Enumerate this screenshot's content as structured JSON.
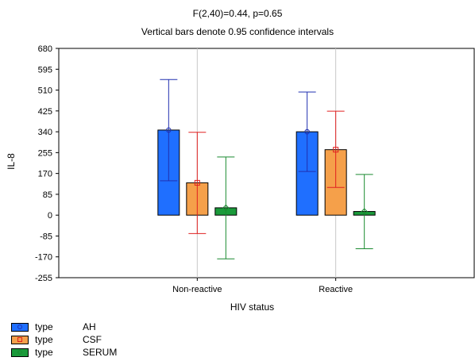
{
  "chart_data": {
    "type": "bar",
    "title": "F(2,40)=0.44, p=0.65",
    "subtitle": "Vertical bars denote 0.95 confidence intervals",
    "xlabel": "HIV status",
    "ylabel": "IL-8",
    "ylim": [
      -255,
      680
    ],
    "yticks": [
      680,
      595,
      510,
      425,
      340,
      255,
      170,
      85,
      0,
      -85,
      -170,
      -255
    ],
    "categories": [
      "Non-reactive",
      "Reactive"
    ],
    "grid": true,
    "legend_position": "bottom-left",
    "series": [
      {
        "name": "AH",
        "legend_prefix": "type",
        "color": "#1f6fff",
        "error_color": "#2030b0",
        "marker": "circle",
        "values": [
          347,
          340
        ],
        "ci_low": [
          140,
          178
        ],
        "ci_high": [
          553,
          502
        ]
      },
      {
        "name": "CSF",
        "legend_prefix": "type",
        "color": "#f5a04a",
        "error_color": "#e02020",
        "marker": "square",
        "values": [
          132,
          267
        ],
        "ci_low": [
          -75,
          113
        ],
        "ci_high": [
          338,
          424
        ]
      },
      {
        "name": "SERUM",
        "legend_prefix": "type",
        "color": "#1a9a3a",
        "error_color": "#1a8a30",
        "marker": "diamond",
        "values": [
          30,
          15
        ],
        "ci_low": [
          -178,
          -137
        ],
        "ci_high": [
          237,
          166
        ]
      }
    ]
  }
}
